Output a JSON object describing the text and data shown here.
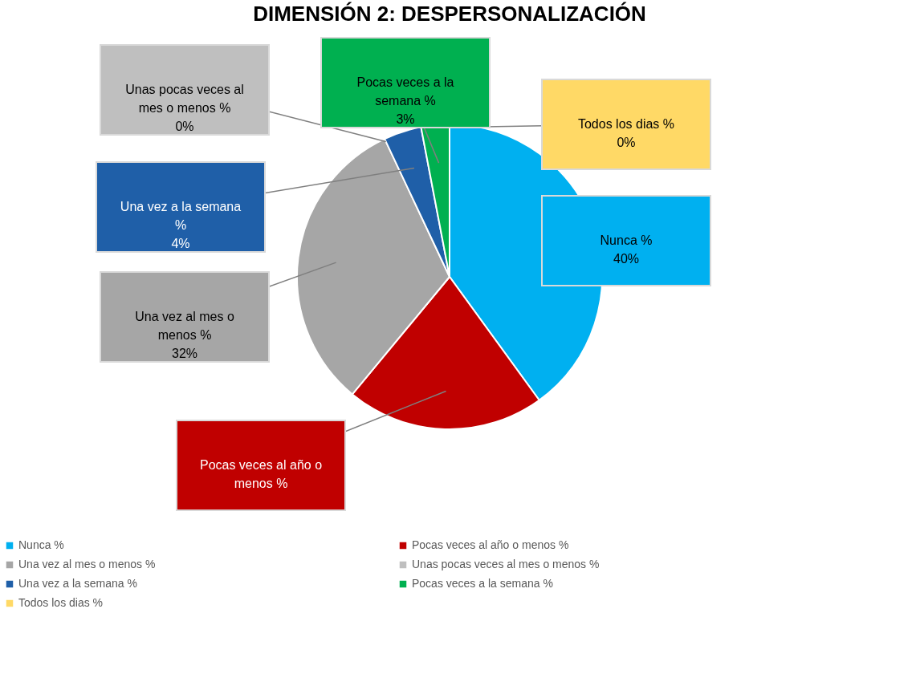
{
  "chart_data": {
    "type": "pie",
    "title": "DIMENSIÓN 2: DESPERSONALIZACIÓN",
    "categories": [
      "Nunca %",
      "Pocas veces al año o menos %",
      "Una vez al mes o menos %",
      "Unas pocas veces al mes o menos %",
      "Una vez a la semana %",
      "Pocas veces a la semana %",
      "Todos los dias %"
    ],
    "values": [
      40,
      21,
      32,
      0,
      4,
      3,
      0
    ],
    "colors": [
      "#00b0f0",
      "#c00000",
      "#a6a6a6",
      "#bfbfbf",
      "#1f5fa8",
      "#00b050",
      "#ffd966"
    ],
    "value_labels": [
      "40%",
      null,
      "32%",
      "0%",
      "4%",
      "3%",
      "0%"
    ],
    "legend": "bottom"
  }
}
